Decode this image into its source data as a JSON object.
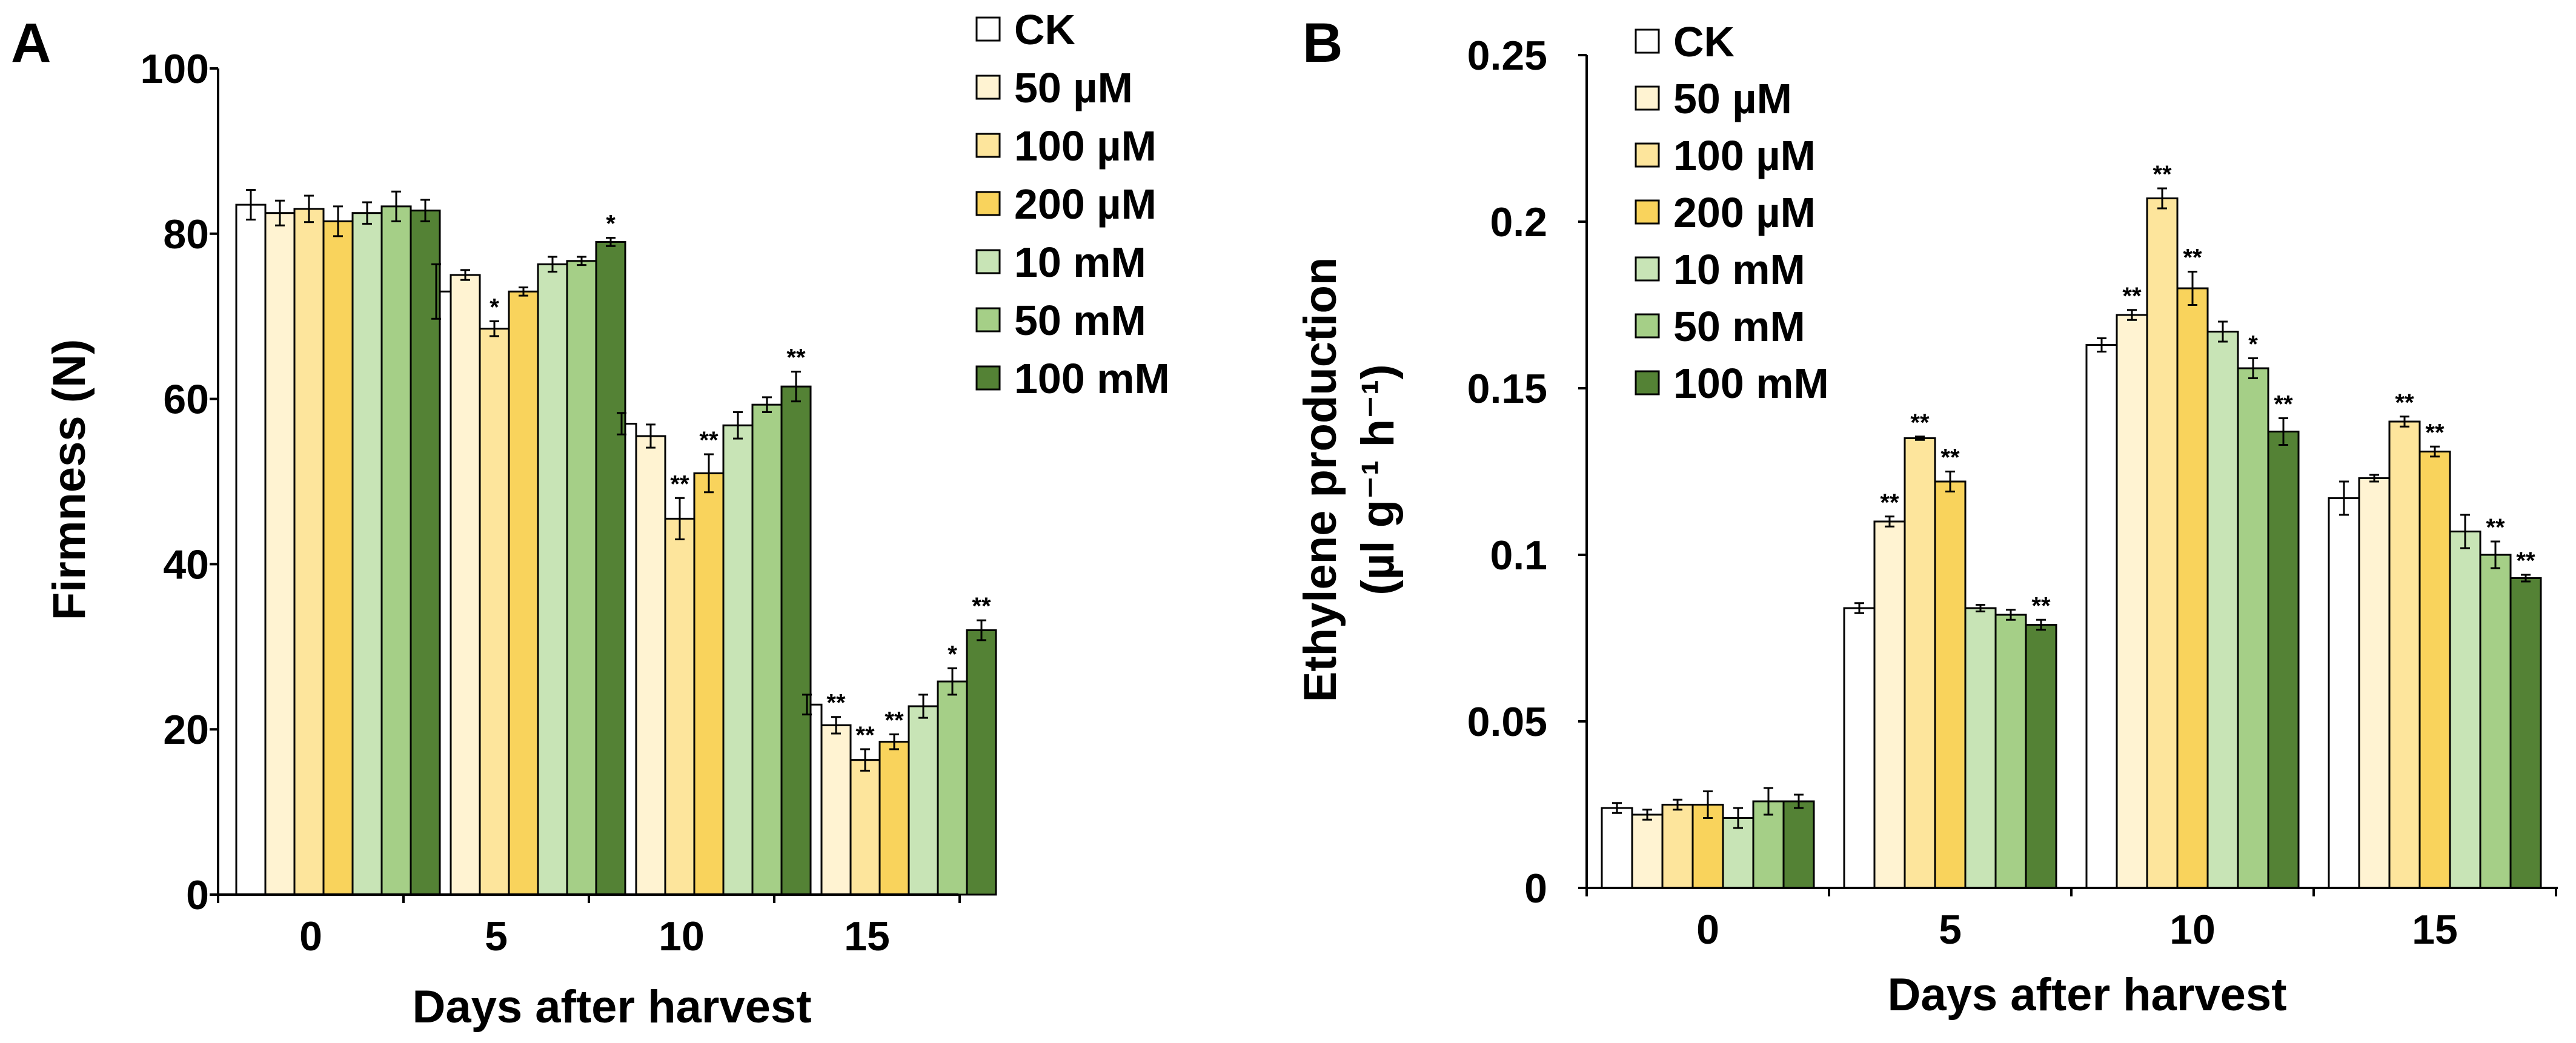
{
  "colors": {
    "CK": "#ffffff",
    "50 µM": "#fff3d2",
    "100 µM": "#fde59c",
    "200 µM": "#f9d35c",
    "10 mM": "#c8e4b6",
    "50 mM": "#a5cf87",
    "100 mM": "#548235"
  },
  "chart_data": [
    {
      "panel": "A",
      "type": "bar",
      "title": "",
      "xlabel": "Days after harvest",
      "ylabel": "Firmness (N)",
      "ylim": [
        0,
        100
      ],
      "yticks": [
        0,
        20,
        40,
        60,
        80,
        100
      ],
      "ytick_labels": [
        "0",
        "20",
        "40",
        "60",
        "80",
        "100"
      ],
      "categories": [
        "0",
        "5",
        "10",
        "15"
      ],
      "legend_position": "top-right",
      "series": [
        {
          "name": "CK",
          "values": [
            83.5,
            73.0,
            57.0,
            23.0
          ],
          "errors": [
            1.8,
            3.3,
            1.3,
            1.2
          ],
          "significance": [
            "",
            "",
            "",
            ""
          ]
        },
        {
          "name": "50 µM",
          "values": [
            82.5,
            75.0,
            55.5,
            20.5
          ],
          "errors": [
            1.5,
            0.6,
            1.4,
            1.0
          ],
          "significance": [
            "",
            "",
            "",
            "**"
          ]
        },
        {
          "name": "100 µM",
          "values": [
            83.0,
            68.5,
            45.5,
            16.3
          ],
          "errors": [
            1.6,
            0.9,
            2.5,
            1.3
          ],
          "significance": [
            "",
            "*",
            "**",
            "**"
          ]
        },
        {
          "name": "200 µM",
          "values": [
            81.5,
            73.0,
            51.0,
            18.5
          ],
          "errors": [
            1.8,
            0.5,
            2.3,
            0.9
          ],
          "significance": [
            "",
            "",
            "**",
            "**"
          ]
        },
        {
          "name": "10 mM",
          "values": [
            82.5,
            76.3,
            56.8,
            22.8
          ],
          "errors": [
            1.3,
            0.9,
            1.6,
            1.4
          ],
          "significance": [
            "",
            "",
            "",
            ""
          ]
        },
        {
          "name": "50 mM",
          "values": [
            83.3,
            76.7,
            59.3,
            25.8
          ],
          "errors": [
            1.8,
            0.5,
            0.9,
            1.6
          ],
          "significance": [
            "",
            "",
            "",
            "*"
          ]
        },
        {
          "name": "100 mM",
          "values": [
            82.8,
            79.0,
            61.5,
            32.0
          ],
          "errors": [
            1.3,
            0.5,
            1.8,
            1.2
          ],
          "significance": [
            "",
            "*",
            "**",
            "**"
          ]
        }
      ]
    },
    {
      "panel": "B",
      "type": "bar",
      "title": "",
      "xlabel": "Days after harvest",
      "ylabel_line1": "Ethylene production",
      "ylabel_line2": "(µl g⁻¹ h⁻¹)",
      "ylim": [
        0,
        0.25
      ],
      "yticks": [
        0,
        0.05,
        0.1,
        0.15,
        0.2,
        0.25
      ],
      "ytick_labels": [
        "0",
        "0.05",
        "0.1",
        "0.15",
        "0.2",
        "0.25"
      ],
      "categories": [
        "0",
        "5",
        "10",
        "15"
      ],
      "legend_position": "top-left",
      "series": [
        {
          "name": "CK",
          "values": [
            0.024,
            0.084,
            0.163,
            0.117
          ],
          "errors": [
            0.0015,
            0.0015,
            0.002,
            0.005
          ],
          "significance": [
            "",
            "",
            "",
            ""
          ]
        },
        {
          "name": "50 µM",
          "values": [
            0.022,
            0.11,
            0.172,
            0.123
          ],
          "errors": [
            0.0015,
            0.0015,
            0.0015,
            0.001
          ],
          "significance": [
            "",
            "**",
            "**",
            ""
          ]
        },
        {
          "name": "100 µM",
          "values": [
            0.025,
            0.135,
            0.207,
            0.14
          ],
          "errors": [
            0.0015,
            0.0005,
            0.003,
            0.0015
          ],
          "significance": [
            "",
            "**",
            "**",
            "**"
          ]
        },
        {
          "name": "200 µM",
          "values": [
            0.025,
            0.122,
            0.18,
            0.131
          ],
          "errors": [
            0.004,
            0.003,
            0.005,
            0.0015
          ],
          "significance": [
            "",
            "**",
            "**",
            "**"
          ]
        },
        {
          "name": "10 mM",
          "values": [
            0.021,
            0.084,
            0.167,
            0.107
          ],
          "errors": [
            0.003,
            0.001,
            0.003,
            0.005
          ],
          "significance": [
            "",
            "",
            "",
            ""
          ]
        },
        {
          "name": "50 mM",
          "values": [
            0.026,
            0.082,
            0.156,
            0.1
          ],
          "errors": [
            0.004,
            0.0015,
            0.003,
            0.004
          ],
          "significance": [
            "",
            "",
            "*",
            "**"
          ]
        },
        {
          "name": "100 mM",
          "values": [
            0.026,
            0.079,
            0.137,
            0.093
          ],
          "errors": [
            0.002,
            0.0015,
            0.004,
            0.001
          ],
          "significance": [
            "",
            "**",
            "**",
            "**"
          ]
        }
      ]
    }
  ]
}
